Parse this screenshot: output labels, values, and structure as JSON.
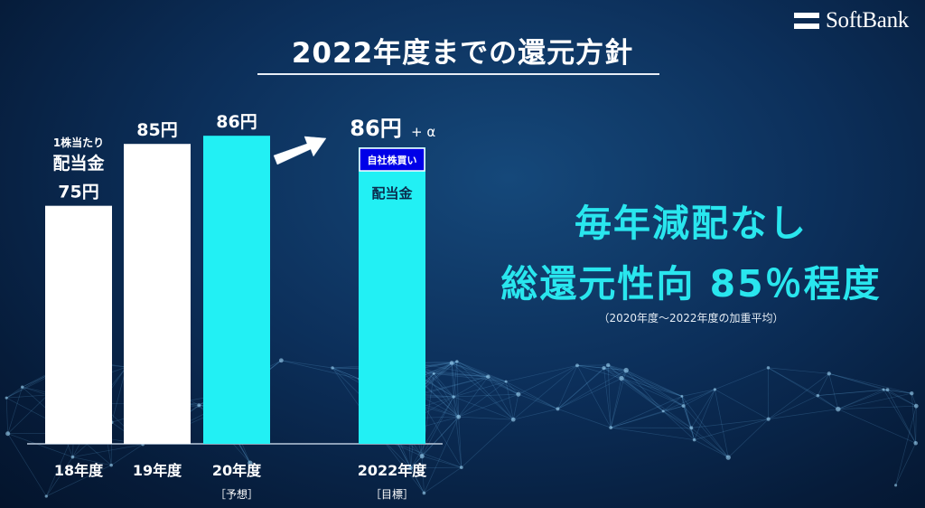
{
  "logo": {
    "text": "SoftBank"
  },
  "title": "2022年度までの還元方針",
  "chart_data": {
    "type": "bar",
    "categories": [
      "18年度",
      "19年度",
      "20年度",
      "2022年度"
    ],
    "category_notes": [
      "",
      "",
      "［予想］",
      "［目標］"
    ],
    "values": [
      75,
      85,
      86,
      86
    ],
    "value_labels": [
      "75円",
      "85円",
      "86円",
      "86円"
    ],
    "bar_colors": [
      "#ffffff",
      "#ffffff",
      "#22f0f4",
      "#22f0f4"
    ],
    "first_bar_prefix": [
      "1株当たり",
      "配当金"
    ],
    "target": {
      "value_label": "86円",
      "extra": "+ α",
      "buyback_label": "自社株買い",
      "buyback_color": "#0000e8",
      "dividend_label": "配当金"
    },
    "ylim": [
      0,
      90
    ]
  },
  "headline": {
    "line1": "毎年減配なし",
    "line2": "総還元性向 85％程度"
  },
  "note": "（2020年度～2022年度の加重平均）"
}
